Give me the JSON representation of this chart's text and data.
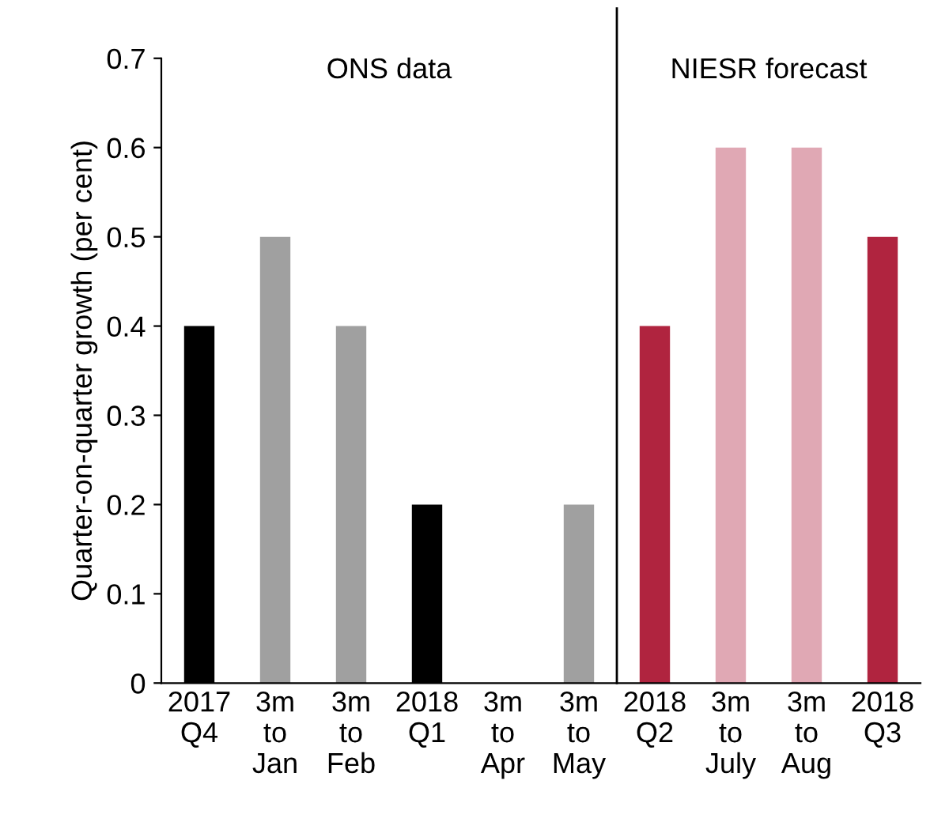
{
  "chart_data": {
    "type": "bar",
    "ylabel": "Quarter-on-quarter growth (per cent)",
    "categories": [
      "2017\nQ4",
      "3m\nto\nJan",
      "3m\nto\nFeb",
      "2018\nQ1",
      "3m\nto\nApr",
      "3m\nto\nMay",
      "2018\nQ2",
      "3m\nto\nJuly",
      "3m\nto\nAug",
      "2018\nQ3"
    ],
    "values": [
      0.4,
      0.5,
      0.4,
      0.2,
      null,
      0.2,
      0.4,
      0.6,
      0.6,
      0.5
    ],
    "colors": [
      "#000000",
      "#a0a0a0",
      "#a0a0a0",
      "#000000",
      "#a0a0a0",
      "#a0a0a0",
      "#b0243f",
      "#e0a8b4",
      "#e0a8b4",
      "#b0243f"
    ],
    "ylim": [
      0,
      0.7
    ],
    "yticks": [
      0,
      0.1,
      0.2,
      0.3,
      0.4,
      0.5,
      0.6,
      0.7
    ],
    "annotations": [
      "ONS data",
      "NIESR forecast"
    ],
    "grid": false,
    "legend": false
  }
}
